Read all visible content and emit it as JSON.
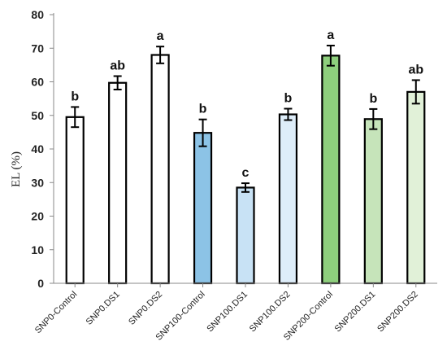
{
  "chart_data": {
    "type": "bar",
    "title": "",
    "xlabel": "",
    "ylabel": "EL (%)",
    "ylim": [
      0,
      80
    ],
    "yticks": [
      0,
      10,
      20,
      30,
      40,
      50,
      60,
      70,
      80
    ],
    "grid": false,
    "legend": "none",
    "categories": [
      "SNP0-Control",
      "SNP0.DS1",
      "SNP0.DS2",
      "SNP100-Control",
      "SNP100.DS1",
      "SNP100.DS2",
      "SNP200-Control",
      "SNP200.DS1",
      "SNP200.DS2"
    ],
    "values": [
      49.5,
      59.7,
      68.0,
      44.8,
      28.5,
      50.3,
      67.8,
      48.9,
      57.0
    ],
    "errors": [
      3.0,
      2.0,
      2.5,
      4.0,
      1.3,
      1.7,
      3.0,
      3.0,
      3.5
    ],
    "labels": [
      "b",
      "ab",
      "a",
      "b",
      "c",
      "b",
      "a",
      "b",
      "ab"
    ],
    "colors": [
      "#ffffff",
      "#ffffff",
      "#ffffff",
      "#8cc3e6",
      "#c8e2f5",
      "#deedf9",
      "#8ecf7d",
      "#c6e4ba",
      "#e1f1d8"
    ]
  }
}
